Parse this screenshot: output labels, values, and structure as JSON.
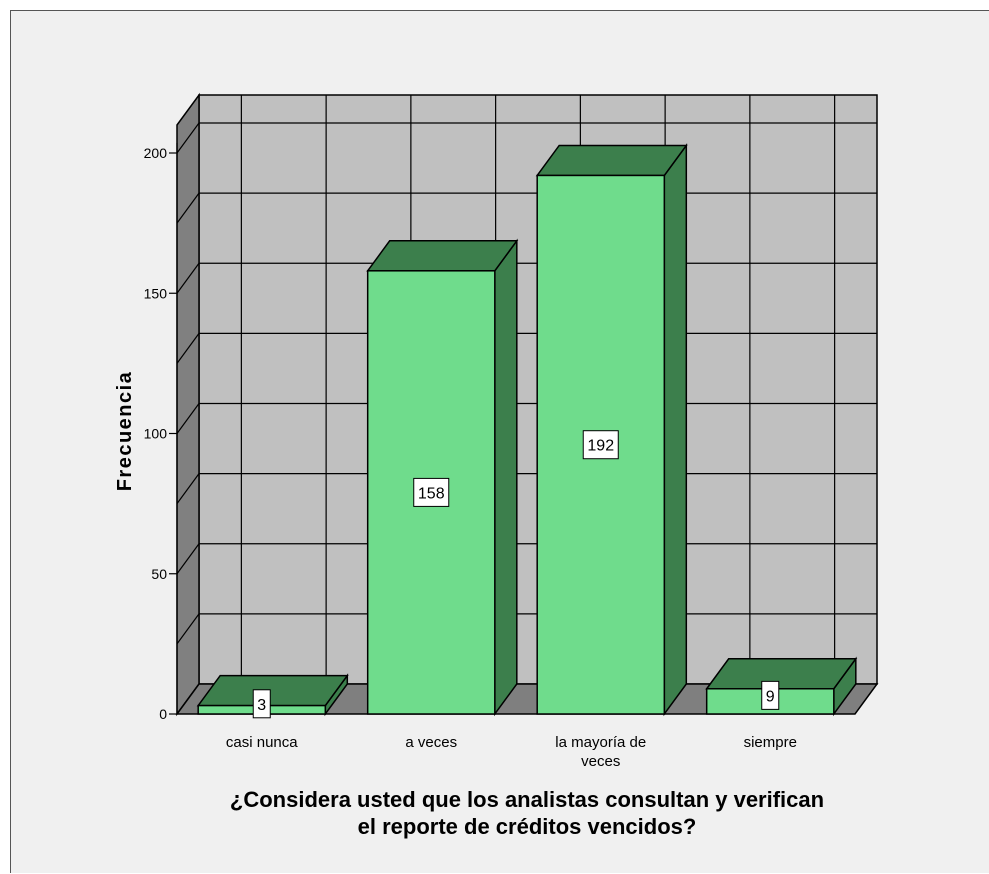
{
  "chart_data": {
    "type": "bar",
    "categories": [
      [
        "casi nunca"
      ],
      [
        "a veces"
      ],
      [
        "la mayoría de",
        "veces"
      ],
      [
        "siempre"
      ]
    ],
    "values": [
      3,
      158,
      192,
      9
    ],
    "data_labels": [
      "3",
      "158",
      "192",
      "9"
    ],
    "ylabel": "Frecuencia",
    "xlabel_lines": [
      "¿Considera usted que los analistas consultan y verifican",
      "el reporte de créditos vencidos?"
    ],
    "ylim": [
      0,
      200
    ],
    "yticks": [
      0,
      50,
      100,
      150,
      200
    ],
    "ytick_labels": [
      "0",
      "50",
      "100",
      "150",
      "200"
    ],
    "style": "3d",
    "grid": true,
    "colors": {
      "bar_front": "#6fdc8c",
      "bar_top": "#3c7f4c",
      "bar_side": "#3c7f4c",
      "wall": "#c0c0c0",
      "floor": "#7f7f7f",
      "side_wall": "#808080",
      "background": "#f0f0f0"
    }
  }
}
